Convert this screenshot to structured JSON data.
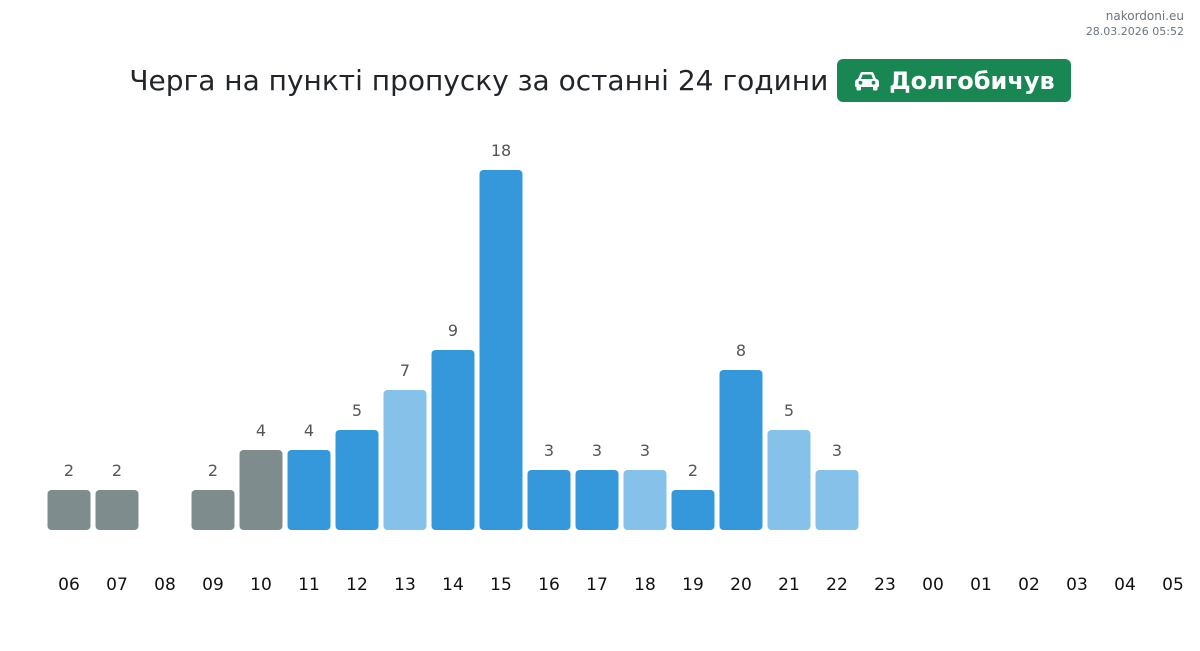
{
  "brand": {
    "site": "nakordoni.eu",
    "timestamp": "28.03.2026 05:52"
  },
  "header": {
    "title": "Черга на пункті пропуску за останні 24 години",
    "checkpoint": "Долгобичув",
    "checkpoint_icon": "car-icon"
  },
  "colors": {
    "gray": "#7f8c8d",
    "blue": "#3498db",
    "light_blue": "#85c1e9",
    "badge": "#198754"
  },
  "chart_data": {
    "type": "bar",
    "categories": [
      "06",
      "07",
      "08",
      "09",
      "10",
      "11",
      "12",
      "13",
      "14",
      "15",
      "16",
      "17",
      "18",
      "19",
      "20",
      "21",
      "22",
      "23",
      "00",
      "01",
      "02",
      "03",
      "04",
      "05"
    ],
    "values": [
      2,
      2,
      null,
      2,
      4,
      4,
      5,
      7,
      9,
      18,
      3,
      3,
      3,
      2,
      8,
      5,
      3,
      null,
      null,
      null,
      null,
      null,
      null,
      null
    ],
    "bar_colors": [
      "gray",
      "gray",
      null,
      "gray",
      "gray",
      "blue",
      "blue",
      "light_blue",
      "blue",
      "blue",
      "blue",
      "blue",
      "light_blue",
      "blue",
      "blue",
      "light_blue",
      "light_blue",
      null,
      null,
      null,
      null,
      null,
      null,
      null
    ],
    "ylim": [
      0,
      18
    ],
    "grid": false,
    "data_labels": true
  }
}
